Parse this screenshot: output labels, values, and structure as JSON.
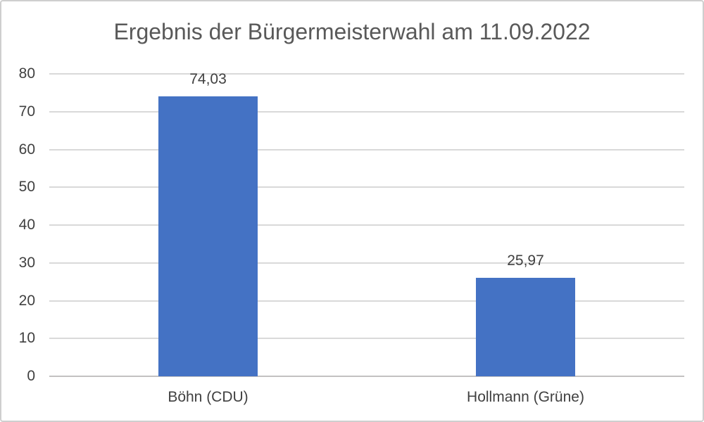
{
  "chart_data": {
    "type": "bar",
    "title": "Ergebnis der Bürgermeisterwahl am 11.09.2022",
    "categories": [
      "Böhn (CDU)",
      "Hollmann (Grüne)"
    ],
    "values": [
      74.03,
      25.97
    ],
    "value_labels": [
      "74,03",
      "25,97"
    ],
    "yticks": [
      0,
      10,
      20,
      30,
      40,
      50,
      60,
      70,
      80
    ],
    "ylim": [
      0,
      80
    ],
    "grid": true,
    "legend_position": "none",
    "colors": {
      "bar": "#4472C4",
      "gridline": "#D9D9D9",
      "axis_line": "#C3C1C1",
      "title_text": "#595959",
      "label_text": "#404040"
    }
  }
}
